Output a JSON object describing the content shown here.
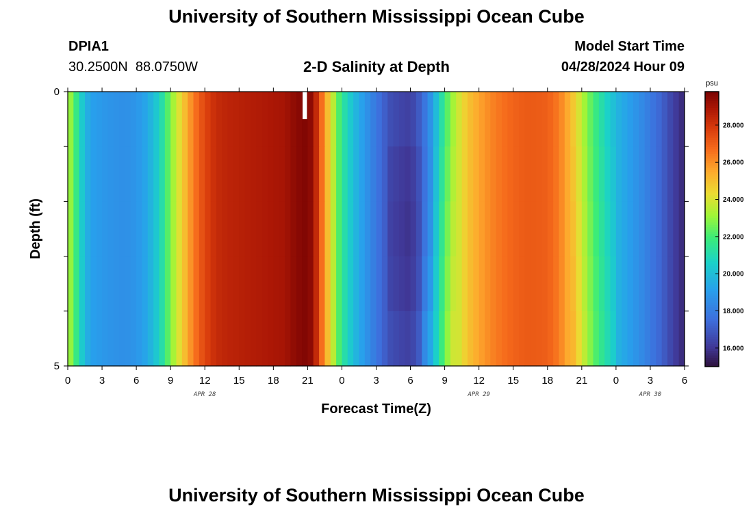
{
  "page": {
    "title": "University of Southern Mississippi Ocean Cube",
    "footer_title": "University of Southern Mississippi Ocean Cube",
    "station_id": "DPIA1",
    "station_coords": "30.2500N  88.0750W",
    "subtitle": "2-D Salinity at Depth",
    "model_start_label": "Model Start Time",
    "model_start_value": "04/28/2024 Hour 09"
  },
  "chart_data": {
    "type": "heatmap",
    "title": "2-D Salinity at Depth",
    "xlabel": "Forecast Time(Z)",
    "ylabel": "Depth (ft)",
    "x_unit": "hours from 04/28 00Z",
    "xlim": [
      0,
      54
    ],
    "ylim": [
      0,
      5
    ],
    "y_inverted": true,
    "x_tick_values": [
      0,
      3,
      6,
      9,
      12,
      15,
      18,
      21,
      24,
      27,
      30,
      33,
      36,
      39,
      42,
      45,
      48,
      51,
      54
    ],
    "x_tick_labels": [
      "0",
      "3",
      "6",
      "9",
      "12",
      "15",
      "18",
      "21",
      "0",
      "3",
      "6",
      "9",
      "12",
      "15",
      "18",
      "21",
      "0",
      "3",
      "6"
    ],
    "y_tick_values": [
      0,
      5
    ],
    "y_tick_labels": [
      "0",
      "5"
    ],
    "date_labels": [
      {
        "text": "APR 28",
        "x": 12
      },
      {
        "text": "APR 29",
        "x": 36
      },
      {
        "text": "APR 30",
        "x": 51
      }
    ],
    "colorbar": {
      "unit": "psu",
      "min": 15,
      "max": 29.8,
      "tick_values": [
        16,
        18,
        20,
        22,
        24,
        26,
        28
      ],
      "tick_labels": [
        "16.000",
        "18.000",
        "20.000",
        "22.000",
        "24.000",
        "26.000",
        "28.000"
      ]
    },
    "depth_levels": [
      0,
      1,
      2,
      3,
      4,
      5
    ],
    "time_step_hours": 0.5,
    "salinity_surface": [
      [
        0,
        23.5
      ],
      [
        0.5,
        22.5
      ],
      [
        1,
        21
      ],
      [
        1.5,
        19.8
      ],
      [
        2,
        19.2
      ],
      [
        3,
        18.9
      ],
      [
        4,
        18.7
      ],
      [
        5,
        18.6
      ],
      [
        6,
        18.8
      ],
      [
        7,
        19.4
      ],
      [
        8,
        20.6
      ],
      [
        9,
        22.8
      ],
      [
        10,
        24.6
      ],
      [
        11,
        26.4
      ],
      [
        12,
        27.6
      ],
      [
        13,
        28.3
      ],
      [
        14,
        28.5
      ],
      [
        15,
        28.6
      ],
      [
        16,
        28.7
      ],
      [
        17,
        28.8
      ],
      [
        18,
        28.9
      ],
      [
        19,
        29.0
      ],
      [
        20,
        29.5
      ],
      [
        20.5,
        29.6
      ],
      [
        21,
        29.7
      ],
      [
        21.5,
        29.2
      ],
      [
        22,
        27.5
      ],
      [
        22.5,
        25.8
      ],
      [
        23,
        24.3
      ],
      [
        23.5,
        22.8
      ],
      [
        24,
        21.5
      ],
      [
        25,
        20
      ],
      [
        26,
        18.9
      ],
      [
        27,
        17.8
      ],
      [
        28,
        16.9
      ],
      [
        29,
        16.6
      ],
      [
        30,
        16.4
      ],
      [
        31,
        17.4
      ],
      [
        32,
        19.2
      ],
      [
        33,
        21.8
      ],
      [
        34,
        23.6
      ],
      [
        35,
        24.9
      ],
      [
        36,
        25.6
      ],
      [
        37,
        26.2
      ],
      [
        38,
        26.6
      ],
      [
        39,
        26.9
      ],
      [
        40,
        27.1
      ],
      [
        41,
        27.1
      ],
      [
        42,
        27.0
      ],
      [
        43,
        26.4
      ],
      [
        44,
        25.2
      ],
      [
        45,
        23.5
      ],
      [
        46,
        22.0
      ],
      [
        47,
        20.8
      ],
      [
        48,
        19.8
      ],
      [
        49,
        19.2
      ],
      [
        50,
        18.6
      ],
      [
        51,
        17.9
      ],
      [
        52,
        17.2
      ],
      [
        53,
        16.3
      ],
      [
        54,
        15.6
      ]
    ],
    "missing_cells": [
      {
        "t_start": 20.5,
        "t_end": 21.0,
        "depth_start": 0,
        "depth_end": 0.5
      }
    ]
  }
}
